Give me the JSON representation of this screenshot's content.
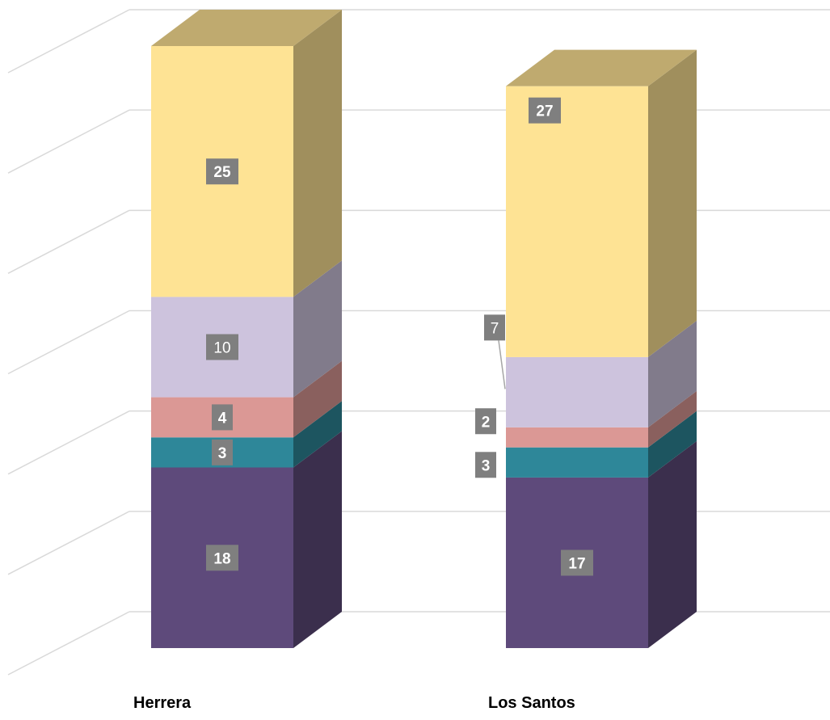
{
  "chart_data": {
    "type": "bar",
    "stacked": true,
    "three_d": true,
    "title": "",
    "xlabel": "",
    "ylabel": "",
    "ylim": [
      0,
      60
    ],
    "grid": true,
    "legend": "none",
    "categories": [
      "Herrera",
      "Los Santos"
    ],
    "series": [
      {
        "color": "#5e4a7b",
        "values": [
          18,
          17
        ],
        "labels": [
          "18",
          "17"
        ],
        "bold": [
          true,
          true
        ]
      },
      {
        "color": "#2e8799",
        "values": [
          3,
          3
        ],
        "labels": [
          "3",
          "3"
        ],
        "bold": [
          true,
          true
        ]
      },
      {
        "color": "#db9895",
        "values": [
          4,
          2
        ],
        "labels": [
          "4",
          "2"
        ],
        "bold": [
          true,
          true
        ]
      },
      {
        "color": "#cdc3dd",
        "values": [
          10,
          7
        ],
        "labels": [
          "10",
          "7"
        ],
        "bold": [
          false,
          false
        ]
      },
      {
        "color": "#fee394",
        "values": [
          25,
          27
        ],
        "labels": [
          "25",
          "27"
        ],
        "bold": [
          true,
          true
        ]
      }
    ]
  }
}
